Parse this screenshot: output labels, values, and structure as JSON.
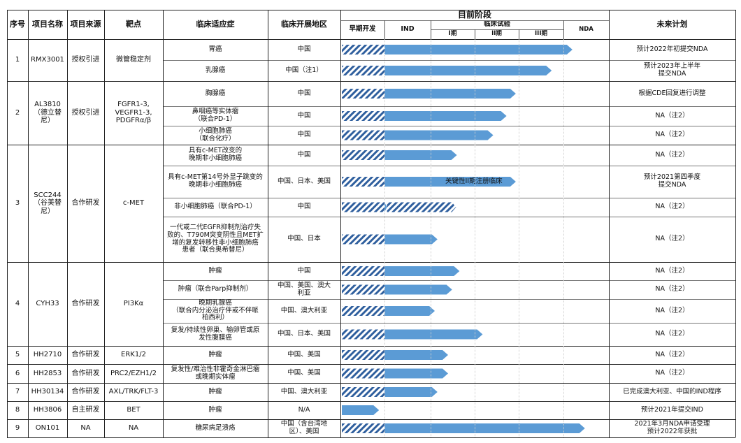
{
  "header": {
    "seq": "序号",
    "name": "项目名称",
    "source": "项目来源",
    "target": "靶点",
    "indication": "临床适应症",
    "region": "临床开展地区",
    "stage": "目前阶段",
    "early": "早期开发",
    "ind": "IND",
    "clinical": "临床试验",
    "p1": "I期",
    "p2": "II期",
    "p3": "III期",
    "nda": "NDA",
    "plan": "未来计划"
  },
  "colors": {
    "bar": "#5b9bd5",
    "hatch": "#2f5f9e",
    "grid": "#222222"
  },
  "projects": [
    {
      "seq": "1",
      "name": "RMX3001",
      "source": "授权引进",
      "target": "微管稳定剂",
      "rows": [
        {
          "indication": "胃癌",
          "region": "中国",
          "progress": 0.868,
          "plan": "预计2022年初提交NDA"
        },
        {
          "indication": "乳腺癌",
          "region": "中国（注1）",
          "progress": 0.79,
          "plan": "预计2023年上半年\n提交NDA"
        }
      ]
    },
    {
      "seq": "2",
      "name": "AL3810\n（德立替\n尼）",
      "source": "授权引进",
      "target": "FGFR1-3,\nVEGFR1-3,\nPDGFRα/β",
      "rows": [
        {
          "indication": "胸腺癌",
          "region": "中国",
          "progress": 0.655,
          "plan": "根据CDE回复进行调整"
        },
        {
          "indication": "鼻咽癌等实体瘤\n（联合PD-1）",
          "region": "中国",
          "progress": 0.62,
          "plan": "NA（注2）"
        },
        {
          "indication": "小细胞肺癌\n（联合化疗）",
          "region": "中国",
          "progress": 0.57,
          "plan": "NA（注2）"
        }
      ]
    },
    {
      "seq": "3",
      "name": "SCC244\n（谷美替\n尼）",
      "source": "合作研发",
      "target": "c-MET",
      "rows": [
        {
          "indication": "具有c-MET改变的\n晚期非小细胞肺癌",
          "region": "中国",
          "progress": 0.433,
          "plan": "NA（注2）"
        },
        {
          "indication": "具有c-MET第14号外显子跳变的\n晚期非小细胞肺癌",
          "region": "中国、日本、美国",
          "progress": 0.655,
          "label": "关键性II期注册临床",
          "plan": "预计2021第四季度\n提交NDA"
        },
        {
          "indication": "非小细胞肺癌（联合PD-1）",
          "region": "中国",
          "progress": 0.17,
          "extra_hatch": 0.43,
          "plan": "NA（注2）"
        },
        {
          "indication": "一代或二代EGFR抑制剂治疗失\n败的、T790M突变阴性且MET扩\n增的复发转移性非小细胞肺癌\n患者（联合奥希替尼）",
          "region": "中国、日本",
          "progress": 0.36,
          "plan": "NA（注2）"
        }
      ]
    },
    {
      "seq": "4",
      "name": "CYH33",
      "source": "合作研发",
      "target": "PI3Kα",
      "rows": [
        {
          "indication": "肿瘤",
          "region": "中国",
          "progress": 0.443,
          "plan": "NA（注2）"
        },
        {
          "indication": "肿瘤（联合Parp抑制剂）",
          "region": "中国、美国、澳大\n利亚",
          "progress": 0.415,
          "plan": "NA（注2）"
        },
        {
          "indication": "晚期乳腺癌\n（联合内分泌治疗伴或不伴哌\n柏西利）",
          "region": "中国、澳大利亚",
          "progress": 0.35,
          "plan": "NA（注2）"
        },
        {
          "indication": "复发/持续性卵巢、输卵管或原\n发性腹膜癌",
          "region": "中国、日本、美国",
          "progress": 0.53,
          "plan": "NA（注2）"
        }
      ]
    },
    {
      "seq": "5",
      "name": "HH2710",
      "source": "合作研发",
      "target": "ERK1/2",
      "rows": [
        {
          "indication": "肿瘤",
          "region": "中国、美国",
          "progress": 0.4,
          "plan": "NA（注2）"
        }
      ]
    },
    {
      "seq": "6",
      "name": "HH2853",
      "source": "合作研发",
      "target": "PRC2/EZH1/2",
      "rows": [
        {
          "indication": "复发性/难治性非霍奇金淋巴瘤\n或晚期实体瘤",
          "region": "中国、美国",
          "progress": 0.4,
          "plan": "NA（注2）"
        }
      ]
    },
    {
      "seq": "7",
      "name": "HH30134",
      "source": "合作研发",
      "target": "AXL/TRK/FLT-3",
      "rows": [
        {
          "indication": "肿瘤",
          "region": "中国、澳大利亚",
          "progress": 0.36,
          "plan": "已完成澳大利亚、中国的IND程序"
        }
      ]
    },
    {
      "seq": "8",
      "name": "HH3806",
      "source": "自主研发",
      "target": "BET",
      "rows": [
        {
          "indication": "肿瘤",
          "region": "N/A",
          "progress": 0.14,
          "hatch_end": 0.0,
          "plan": "预计2021年提交IND"
        }
      ]
    },
    {
      "seq": "9",
      "name": "ON101",
      "source": "NA",
      "target": "NA",
      "rows": [
        {
          "indication": "糖尿病足溃疡",
          "region": "中国（含台湾地\n区）、美国",
          "progress": 0.915,
          "plan": "2021年3月NDA申请受理\n预计2022年获批"
        }
      ]
    }
  ]
}
